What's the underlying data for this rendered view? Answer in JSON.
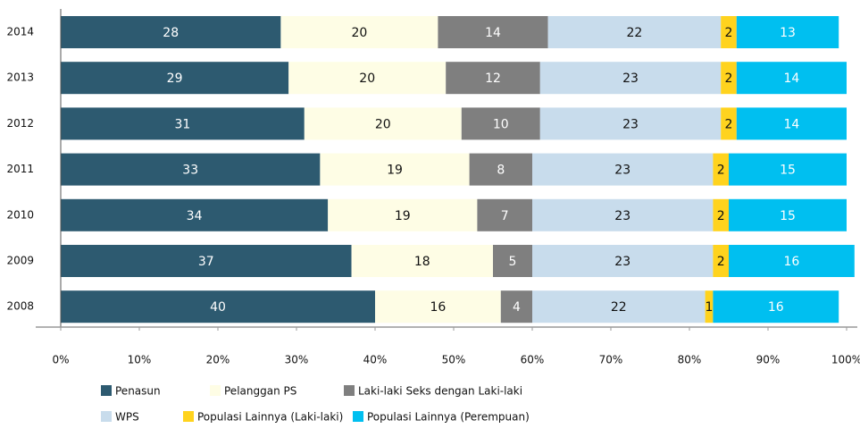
{
  "chart_data": {
    "type": "stacked-bar-horizontal",
    "categories": [
      "2014",
      "2013",
      "2012",
      "2011",
      "2010",
      "2009",
      "2008"
    ],
    "series": [
      {
        "name": "Penasun",
        "color": "#2d5a70",
        "values": [
          28,
          29,
          31,
          33,
          34,
          37,
          40
        ]
      },
      {
        "name": "Pelanggan PS",
        "color": "#fefde5",
        "values": [
          20,
          20,
          20,
          19,
          19,
          18,
          16
        ]
      },
      {
        "name": "Laki-laki Seks dengan Laki-laki",
        "color": "#7f7f7f",
        "values": [
          14,
          12,
          10,
          8,
          7,
          5,
          4
        ]
      },
      {
        "name": "WPS",
        "color": "#c8dcec",
        "values": [
          22,
          23,
          23,
          23,
          23,
          23,
          22
        ]
      },
      {
        "name": "Populasi Lainnya (Laki-laki)",
        "color": "#ffd31e",
        "values": [
          2,
          2,
          2,
          2,
          2,
          2,
          1
        ]
      },
      {
        "name": "Populasi Lainnya (Perempuan)",
        "color": "#00bff0",
        "values": [
          13,
          14,
          14,
          15,
          15,
          16,
          16
        ]
      }
    ],
    "xlim": [
      0,
      100
    ],
    "xticks": [
      {
        "value": 0,
        "label": "0%"
      },
      {
        "value": 10,
        "label": "10%"
      },
      {
        "value": 20,
        "label": "20%"
      },
      {
        "value": 30,
        "label": "30%"
      },
      {
        "value": 40,
        "label": "40%"
      },
      {
        "value": 50,
        "label": "50%"
      },
      {
        "value": 60,
        "label": "60%"
      },
      {
        "value": 70,
        "label": "70%"
      },
      {
        "value": 80,
        "label": "80%"
      },
      {
        "value": 90,
        "label": "90%"
      },
      {
        "value": 100,
        "label": "100%"
      }
    ]
  }
}
